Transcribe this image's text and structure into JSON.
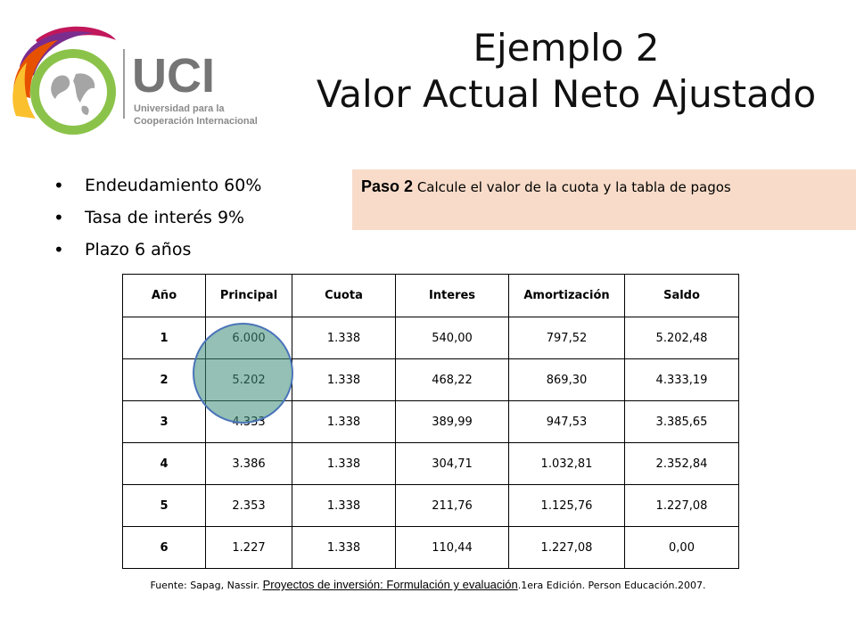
{
  "logo": {
    "letters": "UCI",
    "line1": "Universidad para la",
    "line2": "Cooperación Internacional"
  },
  "title": {
    "line1": "Ejemplo 2",
    "line2": "Valor Actual Neto Ajustado"
  },
  "bullets": [
    {
      "text": "Endeudamiento 60%"
    },
    {
      "text": "Tasa de interés 9%"
    },
    {
      "text": "Plazo 6 años"
    }
  ],
  "step": {
    "label": "Paso 2",
    "text": "Calcule el valor de la cuota y la tabla de pagos",
    "background": "#f8dcc9"
  },
  "table": {
    "headers": [
      "Año",
      "Principal",
      "Cuota",
      "Interes",
      "Amortización",
      "Saldo"
    ],
    "rows": [
      [
        "1",
        "6.000",
        "1.338",
        "540,00",
        "797,52",
        "5.202,48"
      ],
      [
        "2",
        "5.202",
        "1.338",
        "468,22",
        "869,30",
        "4.333,19"
      ],
      [
        "3",
        "4.333",
        "1.338",
        "389,99",
        "947,53",
        "3.385,65"
      ],
      [
        "4",
        "3.386",
        "1.338",
        "304,71",
        "1.032,81",
        "2.352,84"
      ],
      [
        "5",
        "2.353",
        "1.338",
        "211,76",
        "1.125,76",
        "1.227,08"
      ],
      [
        "6",
        "1.227",
        "1.338",
        "110,44",
        "1.227,08",
        "0,00"
      ]
    ]
  },
  "footer": {
    "prefix": "Fuente: Sapag, Nassir. ",
    "book": "Proyectos de inversión: Formulación y evaluación",
    "suffix": ".1era Edición. Person Educación.2007."
  },
  "colors": {
    "highlight": "#3c8c78",
    "highlight_border": "#4a74b8"
  }
}
